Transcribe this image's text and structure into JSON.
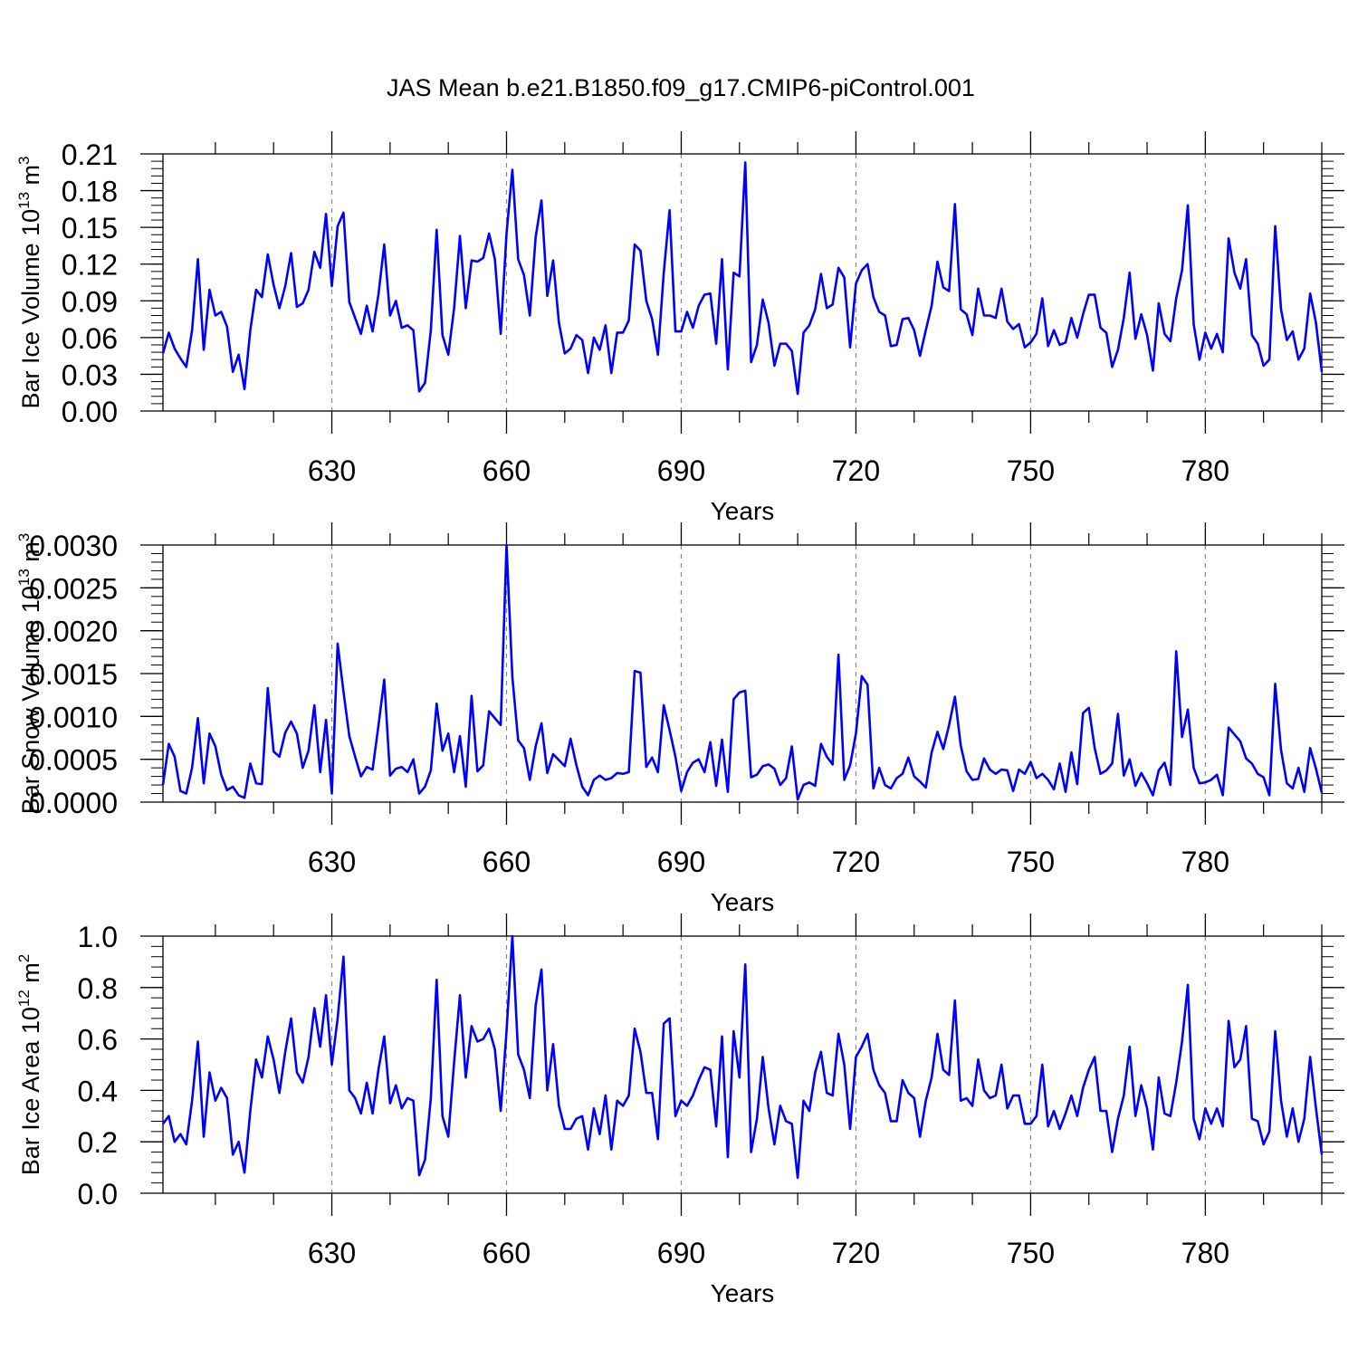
{
  "figure": {
    "title": "JAS Mean b.e21.B1850.f09_g17.CMIP6-piControl.001",
    "line_color": "#0000ff",
    "axis_color": "#000000",
    "grid_color": "#888888"
  },
  "chart_data": [
    {
      "type": "line",
      "name": "Bar Ice Volume",
      "xlabel": "Years",
      "ylabel": "Bar Ice Volume 10",
      "ylabel_exp": "13",
      "ylabel_unit": " m",
      "ylabel_unit_exp": "3",
      "xlim": [
        601,
        800
      ],
      "ylim": [
        0,
        0.21
      ],
      "x_major_ticks": [
        630,
        660,
        690,
        720,
        750,
        780
      ],
      "x_tick_labels": [
        "630",
        "660",
        "690",
        "720",
        "750",
        "780"
      ],
      "x_minor_ticks": [
        610,
        620,
        640,
        650,
        670,
        680,
        700,
        710,
        730,
        740,
        760,
        770,
        790,
        800
      ],
      "y_major_ticks": [
        0,
        0.03,
        0.06,
        0.09,
        0.12,
        0.15,
        0.18,
        0.21
      ],
      "y_tick_labels": [
        "0.00",
        "0.03",
        "0.06",
        "0.09",
        "0.12",
        "0.15",
        "0.18",
        "0.21"
      ],
      "y_minor_step": 0.006,
      "x_start": 601,
      "values": [
        0.047,
        0.064,
        0.051,
        0.043,
        0.036,
        0.066,
        0.124,
        0.05,
        0.099,
        0.078,
        0.081,
        0.069,
        0.032,
        0.046,
        0.018,
        0.066,
        0.099,
        0.093,
        0.128,
        0.103,
        0.084,
        0.102,
        0.129,
        0.085,
        0.088,
        0.099,
        0.13,
        0.117,
        0.161,
        0.102,
        0.151,
        0.162,
        0.089,
        0.076,
        0.063,
        0.086,
        0.065,
        0.095,
        0.136,
        0.078,
        0.09,
        0.068,
        0.07,
        0.066,
        0.016,
        0.023,
        0.066,
        0.148,
        0.062,
        0.046,
        0.084,
        0.143,
        0.084,
        0.123,
        0.122,
        0.125,
        0.145,
        0.124,
        0.063,
        0.145,
        0.197,
        0.124,
        0.111,
        0.078,
        0.142,
        0.172,
        0.094,
        0.123,
        0.072,
        0.047,
        0.051,
        0.062,
        0.058,
        0.031,
        0.06,
        0.05,
        0.07,
        0.031,
        0.064,
        0.064,
        0.074,
        0.136,
        0.131,
        0.09,
        0.075,
        0.046,
        0.113,
        0.164,
        0.065,
        0.065,
        0.081,
        0.068,
        0.086,
        0.095,
        0.096,
        0.055,
        0.124,
        0.034,
        0.113,
        0.11,
        0.203,
        0.04,
        0.054,
        0.091,
        0.072,
        0.037,
        0.055,
        0.055,
        0.049,
        0.014,
        0.064,
        0.07,
        0.083,
        0.112,
        0.084,
        0.087,
        0.117,
        0.109,
        0.052,
        0.104,
        0.115,
        0.12,
        0.093,
        0.081,
        0.078,
        0.053,
        0.054,
        0.075,
        0.076,
        0.066,
        0.045,
        0.066,
        0.086,
        0.122,
        0.101,
        0.098,
        0.169,
        0.083,
        0.079,
        0.062,
        0.1,
        0.078,
        0.078,
        0.076,
        0.1,
        0.073,
        0.067,
        0.071,
        0.052,
        0.056,
        0.063,
        0.092,
        0.053,
        0.066,
        0.054,
        0.056,
        0.076,
        0.06,
        0.079,
        0.095,
        0.095,
        0.068,
        0.064,
        0.036,
        0.05,
        0.076,
        0.113,
        0.059,
        0.079,
        0.062,
        0.033,
        0.088,
        0.063,
        0.057,
        0.092,
        0.115,
        0.168,
        0.071,
        0.042,
        0.064,
        0.051,
        0.063,
        0.048,
        0.141,
        0.113,
        0.1,
        0.124,
        0.062,
        0.055,
        0.037,
        0.042,
        0.151,
        0.083,
        0.058,
        0.065,
        0.042,
        0.051,
        0.096,
        0.072,
        0.032
      ]
    },
    {
      "type": "line",
      "name": "Bar Snow Volume",
      "xlabel": "Years",
      "ylabel": "Bar Snow Volume 10",
      "ylabel_exp": "13",
      "ylabel_unit": " m",
      "ylabel_unit_exp": "3",
      "xlim": [
        601,
        800
      ],
      "ylim": [
        0,
        0.003
      ],
      "x_major_ticks": [
        630,
        660,
        690,
        720,
        750,
        780
      ],
      "x_tick_labels": [
        "630",
        "660",
        "690",
        "720",
        "750",
        "780"
      ],
      "x_minor_ticks": [
        610,
        620,
        640,
        650,
        670,
        680,
        700,
        710,
        730,
        740,
        760,
        770,
        790,
        800
      ],
      "y_major_ticks": [
        0,
        0.0005,
        0.001,
        0.0015,
        0.002,
        0.0025,
        0.003
      ],
      "y_tick_labels": [
        "0.0000",
        "0.0005",
        "0.0010",
        "0.0015",
        "0.0020",
        "0.0025",
        "0.0030"
      ],
      "y_minor_step": 0.0001,
      "x_start": 601,
      "values": [
        0.0002,
        0.00068,
        0.00053,
        0.00013,
        0.0001,
        0.0004,
        0.00098,
        0.00022,
        0.0008,
        0.00065,
        0.00032,
        0.00014,
        0.00018,
        8e-05,
        5e-05,
        0.00045,
        0.00022,
        0.00021,
        0.00133,
        0.00059,
        0.00053,
        0.00081,
        0.00094,
        0.0008,
        0.0004,
        0.0006,
        0.00113,
        0.00035,
        0.00096,
        0.0001,
        0.00185,
        0.00129,
        0.00077,
        0.00053,
        0.0003,
        0.00041,
        0.00038,
        0.00089,
        0.00143,
        0.00031,
        0.00039,
        0.00041,
        0.00035,
        0.0005,
        0.0001,
        0.00018,
        0.00037,
        0.00115,
        0.0006,
        0.0008,
        0.00035,
        0.00077,
        0.00018,
        0.00124,
        0.00036,
        0.00043,
        0.00106,
        0.00098,
        0.0009,
        0.003,
        0.00146,
        0.00072,
        0.00063,
        0.00026,
        0.00065,
        0.00092,
        0.00034,
        0.00056,
        0.00049,
        0.00042,
        0.00074,
        0.00043,
        0.00018,
        8e-05,
        0.00026,
        0.00031,
        0.00026,
        0.00028,
        0.00034,
        0.00033,
        0.00035,
        0.00153,
        0.00151,
        0.00041,
        0.00052,
        0.00035,
        0.00113,
        0.00084,
        0.00053,
        0.00013,
        0.00035,
        0.00046,
        0.0005,
        0.00035,
        0.0007,
        0.00019,
        0.00073,
        0.00012,
        0.0012,
        0.00128,
        0.0013,
        0.00029,
        0.00032,
        0.00042,
        0.00044,
        0.00039,
        0.0002,
        0.00028,
        0.00065,
        3e-05,
        0.0002,
        0.00023,
        0.00019,
        0.00068,
        0.00053,
        0.00044,
        0.00172,
        0.00026,
        0.00043,
        0.0008,
        0.00147,
        0.00137,
        0.00016,
        0.0004,
        0.0002,
        0.00016,
        0.00028,
        0.00033,
        0.00052,
        0.0003,
        0.00024,
        0.00017,
        0.00058,
        0.00082,
        0.00062,
        0.0009,
        0.00123,
        0.00066,
        0.00036,
        0.00026,
        0.00027,
        0.00051,
        0.00038,
        0.00033,
        0.00038,
        0.00037,
        0.00013,
        0.00038,
        0.00033,
        0.00047,
        0.00028,
        0.00033,
        0.00026,
        0.00015,
        0.00045,
        0.00012,
        0.00058,
        0.00021,
        0.00104,
        0.0011,
        0.00063,
        0.00033,
        0.00037,
        0.00045,
        0.00103,
        0.00031,
        0.0005,
        0.00019,
        0.00034,
        0.00022,
        8e-05,
        0.00037,
        0.00046,
        0.0002,
        0.00176,
        0.00076,
        0.00108,
        0.0004,
        0.00022,
        0.00023,
        0.00026,
        0.00032,
        8e-05,
        0.00087,
        0.00079,
        0.00071,
        0.00051,
        0.00045,
        0.00033,
        0.00029,
        8e-05,
        0.00138,
        0.00061,
        0.00022,
        0.00016,
        0.0004,
        0.00012,
        0.00063,
        0.00039,
        0.00011
      ]
    },
    {
      "type": "line",
      "name": "Bar Ice Area",
      "xlabel": "Years",
      "ylabel": "Bar Ice Area 10",
      "ylabel_exp": "12",
      "ylabel_unit": " m",
      "ylabel_unit_exp": "2",
      "xlim": [
        601,
        800
      ],
      "ylim": [
        0,
        1.0
      ],
      "x_major_ticks": [
        630,
        660,
        690,
        720,
        750,
        780
      ],
      "x_tick_labels": [
        "630",
        "660",
        "690",
        "720",
        "750",
        "780"
      ],
      "x_minor_ticks": [
        610,
        620,
        640,
        650,
        670,
        680,
        700,
        710,
        730,
        740,
        760,
        770,
        790,
        800
      ],
      "y_major_ticks": [
        0,
        0.2,
        0.4,
        0.6,
        0.8,
        1.0
      ],
      "y_tick_labels": [
        "0.0",
        "0.2",
        "0.4",
        "0.6",
        "0.8",
        "1.0"
      ],
      "y_minor_step": 0.04,
      "x_start": 601,
      "values": [
        0.27,
        0.3,
        0.2,
        0.23,
        0.19,
        0.36,
        0.59,
        0.22,
        0.47,
        0.36,
        0.41,
        0.37,
        0.15,
        0.2,
        0.08,
        0.32,
        0.52,
        0.45,
        0.61,
        0.52,
        0.39,
        0.55,
        0.68,
        0.47,
        0.43,
        0.53,
        0.72,
        0.57,
        0.77,
        0.5,
        0.68,
        0.92,
        0.4,
        0.37,
        0.31,
        0.43,
        0.31,
        0.48,
        0.61,
        0.35,
        0.42,
        0.33,
        0.37,
        0.36,
        0.07,
        0.13,
        0.37,
        0.83,
        0.3,
        0.22,
        0.51,
        0.77,
        0.45,
        0.65,
        0.59,
        0.6,
        0.64,
        0.56,
        0.32,
        0.63,
        1.0,
        0.54,
        0.48,
        0.37,
        0.73,
        0.87,
        0.4,
        0.58,
        0.34,
        0.25,
        0.25,
        0.29,
        0.3,
        0.17,
        0.33,
        0.23,
        0.38,
        0.17,
        0.36,
        0.34,
        0.38,
        0.64,
        0.55,
        0.39,
        0.39,
        0.21,
        0.66,
        0.68,
        0.3,
        0.36,
        0.34,
        0.38,
        0.44,
        0.49,
        0.48,
        0.26,
        0.61,
        0.14,
        0.63,
        0.45,
        0.89,
        0.16,
        0.29,
        0.53,
        0.33,
        0.19,
        0.34,
        0.28,
        0.27,
        0.06,
        0.36,
        0.32,
        0.47,
        0.55,
        0.39,
        0.38,
        0.62,
        0.5,
        0.25,
        0.53,
        0.57,
        0.62,
        0.48,
        0.42,
        0.39,
        0.28,
        0.28,
        0.44,
        0.39,
        0.37,
        0.22,
        0.36,
        0.45,
        0.62,
        0.48,
        0.46,
        0.75,
        0.36,
        0.37,
        0.34,
        0.52,
        0.4,
        0.37,
        0.38,
        0.5,
        0.33,
        0.38,
        0.38,
        0.27,
        0.27,
        0.3,
        0.5,
        0.26,
        0.32,
        0.25,
        0.31,
        0.38,
        0.3,
        0.41,
        0.48,
        0.53,
        0.32,
        0.32,
        0.16,
        0.29,
        0.38,
        0.57,
        0.3,
        0.42,
        0.33,
        0.17,
        0.45,
        0.31,
        0.3,
        0.43,
        0.59,
        0.81,
        0.29,
        0.21,
        0.33,
        0.27,
        0.33,
        0.26,
        0.67,
        0.49,
        0.52,
        0.65,
        0.29,
        0.28,
        0.19,
        0.24,
        0.63,
        0.36,
        0.22,
        0.33,
        0.2,
        0.29,
        0.53,
        0.33,
        0.15
      ]
    }
  ]
}
